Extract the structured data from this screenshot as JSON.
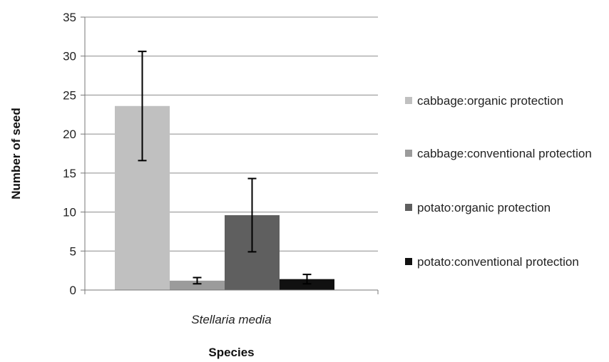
{
  "chart_data": {
    "type": "bar",
    "xlabel": "Species",
    "ylabel": "Number of seed",
    "ylim": [
      0,
      35
    ],
    "yticks": [
      0,
      5,
      10,
      15,
      20,
      25,
      30,
      35
    ],
    "grid": true,
    "legend_position": "right",
    "categories": [
      "Stellaria media"
    ],
    "series": [
      {
        "name": "cabbage:organic protection",
        "values": [
          23.6
        ],
        "error": [
          7.0
        ],
        "color": "#c0c0c0"
      },
      {
        "name": "cabbage:conventional protection",
        "values": [
          1.2
        ],
        "error": [
          0.4
        ],
        "color": "#9b9b9b"
      },
      {
        "name": "potato:organic protection",
        "values": [
          9.6
        ],
        "error": [
          4.7
        ],
        "color": "#5f5f5f"
      },
      {
        "name": "potato:conventional protection",
        "values": [
          1.4
        ],
        "error": [
          0.6
        ],
        "color": "#111111"
      }
    ]
  }
}
